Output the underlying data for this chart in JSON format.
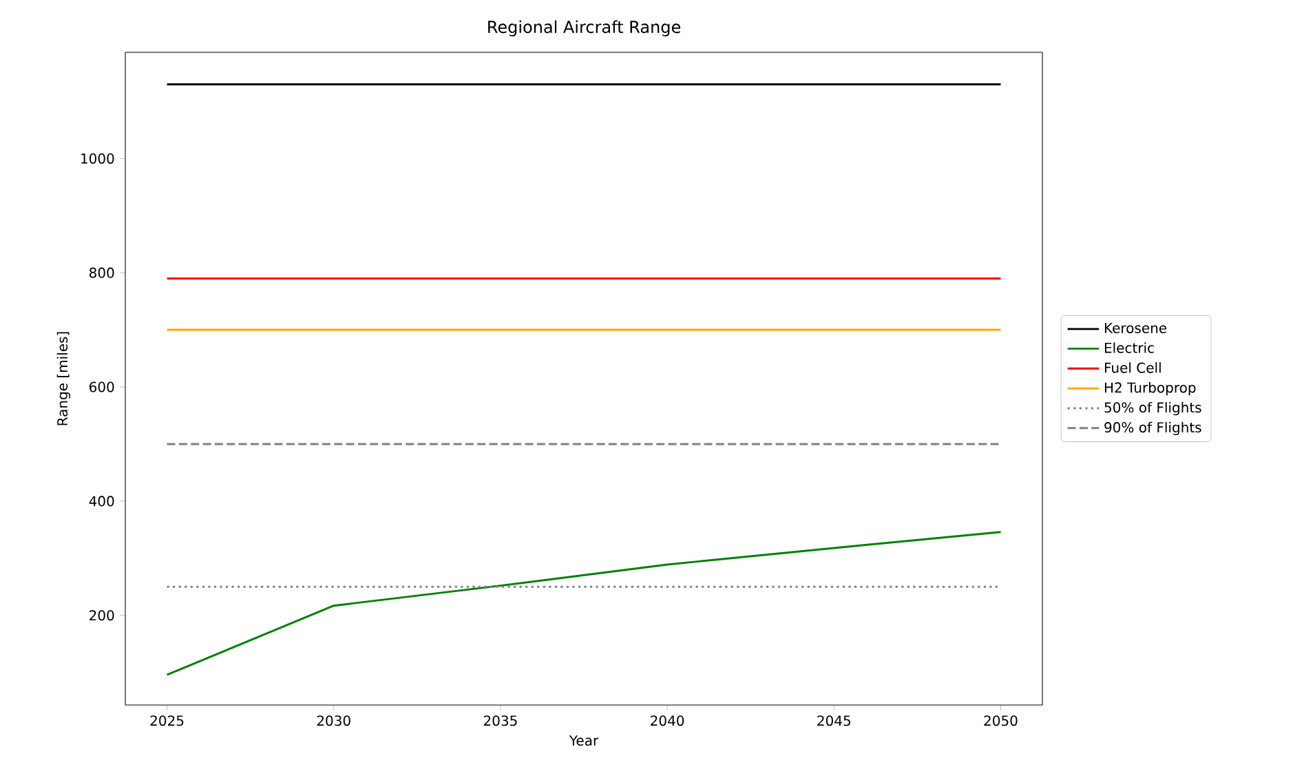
{
  "chart_data": {
    "type": "line",
    "title": "Regional Aircraft Range",
    "xlabel": "Year",
    "ylabel": "Range [miles]",
    "xlim": [
      2023.75,
      2051.25
    ],
    "ylim": [
      43,
      1186
    ],
    "xticks": [
      2025,
      2030,
      2035,
      2040,
      2045,
      2050
    ],
    "yticks": [
      200,
      400,
      600,
      800,
      1000
    ],
    "legend": "right",
    "grid": false,
    "marker": "none",
    "series": [
      {
        "name": "Kerosene",
        "color": "#000000",
        "x": [
          2025,
          2050
        ],
        "values": [
          1130,
          1130
        ]
      },
      {
        "name": "Electric",
        "color": "#008000",
        "x": [
          2025,
          2030,
          2035,
          2040,
          2045,
          2050
        ],
        "values": [
          96,
          217,
          252,
          289,
          318,
          346
        ]
      },
      {
        "name": "Fuel Cell",
        "color": "#ff0000",
        "x": [
          2025,
          2050
        ],
        "values": [
          790,
          790
        ]
      },
      {
        "name": "H2 Turboprop",
        "color": "#ffa500",
        "x": [
          2025,
          2050
        ],
        "values": [
          700,
          700
        ]
      },
      {
        "name": "50% of Flights",
        "color": "#808080",
        "line_style": "dotted",
        "x": [
          2025,
          2050
        ],
        "values": [
          250,
          250
        ]
      },
      {
        "name": "90% of Flights",
        "color": "#808080",
        "line_style": "dashed",
        "x": [
          2025,
          2050
        ],
        "values": [
          500,
          500
        ]
      }
    ]
  }
}
